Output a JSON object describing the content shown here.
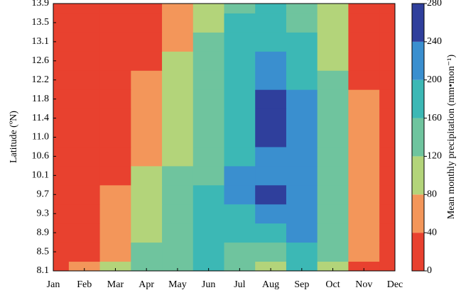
{
  "chart_data": {
    "type": "contour",
    "x_categories": [
      "Jan",
      "Feb",
      "Mar",
      "Apr",
      "May",
      "Jun",
      "Jul",
      "Aug",
      "Sep",
      "Oct",
      "Nov",
      "Dec"
    ],
    "y_categories": [
      "8.1",
      "8.5",
      "8.9",
      "9.3",
      "9.7",
      "10.1",
      "10.6",
      "11.0",
      "11.4",
      "11.8",
      "12.2",
      "12.6",
      "13.1",
      "13.5",
      "13.9"
    ],
    "ylabel": "Latitude (ºN)",
    "z": [
      [
        10,
        40,
        100,
        130,
        150,
        170,
        150,
        110,
        180,
        100,
        20,
        10
      ],
      [
        10,
        35,
        70,
        120,
        140,
        170,
        150,
        150,
        190,
        130,
        50,
        10
      ],
      [
        10,
        20,
        60,
        100,
        140,
        170,
        180,
        190,
        200,
        140,
        60,
        10
      ],
      [
        10,
        15,
        45,
        90,
        130,
        160,
        190,
        215,
        210,
        150,
        70,
        10
      ],
      [
        10,
        10,
        40,
        90,
        125,
        160,
        210,
        250,
        215,
        150,
        60,
        10
      ],
      [
        10,
        10,
        30,
        85,
        120,
        155,
        200,
        225,
        215,
        145,
        55,
        10
      ],
      [
        10,
        10,
        25,
        75,
        115,
        150,
        195,
        235,
        210,
        140,
        50,
        10
      ],
      [
        10,
        10,
        20,
        65,
        110,
        150,
        190,
        255,
        210,
        140,
        45,
        10
      ],
      [
        10,
        10,
        15,
        55,
        105,
        145,
        190,
        250,
        205,
        135,
        45,
        10
      ],
      [
        10,
        10,
        10,
        45,
        100,
        140,
        185,
        240,
        200,
        130,
        40,
        10
      ],
      [
        10,
        10,
        5,
        40,
        90,
        130,
        180,
        215,
        180,
        120,
        35,
        10
      ],
      [
        5,
        5,
        5,
        30,
        80,
        125,
        170,
        200,
        170,
        110,
        30,
        5
      ],
      [
        5,
        5,
        5,
        20,
        70,
        120,
        165,
        185,
        160,
        100,
        25,
        5
      ],
      [
        5,
        5,
        5,
        10,
        60,
        110,
        160,
        175,
        150,
        90,
        20,
        5
      ],
      [
        5,
        5,
        5,
        5,
        45,
        100,
        150,
        165,
        140,
        85,
        15,
        5
      ]
    ],
    "colorbar": {
      "label": "Mean monthly precipitation (mm•mon⁻¹)",
      "lim": [
        0,
        280
      ],
      "ticks": [
        0,
        40,
        80,
        120,
        160,
        200,
        240,
        280
      ],
      "colors": [
        "#e8412f",
        "#f3965a",
        "#b3d47a",
        "#6fc49e",
        "#3cb8b5",
        "#3a8fcf",
        "#2f3f9c"
      ]
    }
  }
}
